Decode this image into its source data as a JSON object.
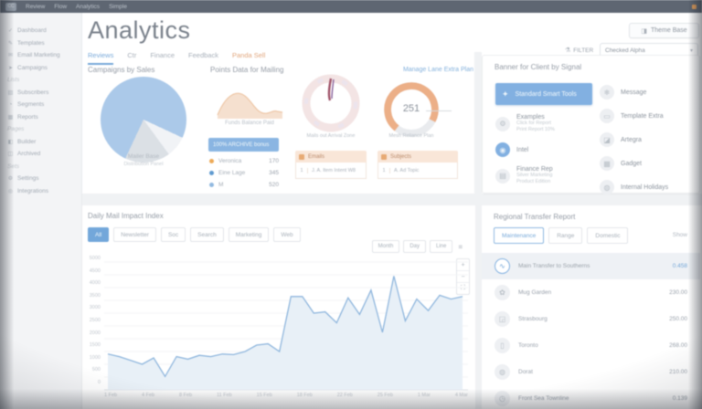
{
  "topbar": {
    "brand": "CC",
    "items": [
      "Review",
      "Flow",
      "Analytics",
      "Simple"
    ]
  },
  "sidebar": {
    "rows": [
      {
        "t": "item",
        "icon": "✓",
        "id": "dashboard",
        "label": "Dashboard"
      },
      {
        "t": "item",
        "icon": "✎",
        "id": "templates",
        "label": "Templates"
      },
      {
        "t": "item",
        "icon": "✉",
        "id": "email-marketing",
        "label": "Email Marketing"
      },
      {
        "t": "item",
        "icon": "➤",
        "id": "campaigns",
        "label": "Campaigns"
      },
      {
        "t": "header",
        "label": "Lists"
      },
      {
        "t": "item",
        "icon": "▤",
        "id": "subscribers",
        "label": "Subscribers"
      },
      {
        "t": "item",
        "icon": "◔",
        "id": "segments",
        "label": "Segments"
      },
      {
        "t": "item",
        "icon": "▦",
        "id": "reports",
        "label": "Reports"
      },
      {
        "t": "header",
        "label": "Pages"
      },
      {
        "t": "item",
        "icon": "◧",
        "id": "builder",
        "label": "Builder"
      },
      {
        "t": "item",
        "icon": "◫",
        "id": "archived",
        "label": "Archived"
      },
      {
        "t": "header",
        "label": "Sets"
      },
      {
        "t": "item",
        "icon": "⚙",
        "id": "settings",
        "label": "Settings"
      },
      {
        "t": "item",
        "icon": "◎",
        "id": "integrations",
        "label": "Integrations"
      }
    ]
  },
  "header": {
    "title": "Analytics",
    "theme_button": "Theme Base",
    "filter_label": "FILTER",
    "select_value": "Checked Alpha",
    "tabs": [
      {
        "label": "Reviews",
        "state": "active"
      },
      {
        "label": "Ctr",
        "state": ""
      },
      {
        "label": "Finance",
        "state": ""
      },
      {
        "label": "Feedback",
        "state": ""
      },
      {
        "label": "Panda Sell",
        "state": "orange"
      }
    ]
  },
  "cards": {
    "campaigns": {
      "title": "Campaigns by Sales",
      "caption_line1": "Mailer Base",
      "caption_line2": "Distribution Panel",
      "pie": {
        "slices": [
          {
            "value": 75,
            "color": "#a9c9ec"
          },
          {
            "value": 8,
            "color": "#f1f3f6"
          },
          {
            "value": 17,
            "color": "#dbe0e6"
          }
        ],
        "start_deg": 205
      }
    },
    "points": {
      "title": "Points Data for Mailing",
      "link": "Manage Lane Extra Plan",
      "spark_caption": "Funds Balance Paid",
      "badge": "100% ARCHIVE bonus",
      "legend": [
        {
          "label": "Veronica",
          "value": "170",
          "color": "#f2a94f"
        },
        {
          "label": "Eine Lage",
          "value": "345",
          "color": "#5b9bd5"
        },
        {
          "label": "M",
          "value": "520",
          "color": "#8fb9e4"
        }
      ],
      "wreath_caption": "Mails out Arrival Zone",
      "gauge": {
        "value": "251",
        "caption": "Mesh Reliance Plan",
        "percent": 72,
        "color": "#f0ae83"
      },
      "boxes": [
        {
          "header": "Emails",
          "row_num": "1",
          "row_text": "J. A. Item Intent W8"
        },
        {
          "header": "Subjects",
          "row_num": "1",
          "row_text": "A. Ad Topic"
        }
      ]
    },
    "banner": {
      "title": "Banner for Client by Signal",
      "left": [
        {
          "label": "Standard Smart Tools",
          "icon": "✦",
          "highlight": true
        },
        {
          "label": "Examples",
          "icon": "⚙",
          "sub1": "Click for Report",
          "sub2": "Print Report 10%"
        },
        {
          "label": "Intel",
          "icon": "◉",
          "blue": true
        },
        {
          "label": "Finance Rep",
          "icon": "▤",
          "sub1": "Silver Marketing",
          "sub2": "Product Edition"
        }
      ],
      "right": [
        {
          "label": "Message",
          "icon": "❄"
        },
        {
          "label": "Template Extra",
          "icon": "▭"
        },
        {
          "label": "Artegra",
          "icon": "◪"
        },
        {
          "label": "Gadget",
          "icon": "▦"
        },
        {
          "label": "Internal Holidays",
          "icon": "◍"
        }
      ]
    },
    "daily": {
      "title": "Daily Mail Impact Index",
      "pills": [
        {
          "label": "All",
          "active": true
        },
        {
          "label": "Newsletter"
        },
        {
          "label": "Soc"
        },
        {
          "label": "Search"
        },
        {
          "label": "Marketing"
        },
        {
          "label": "Web"
        }
      ],
      "range_buttons": [
        "Month",
        "Day",
        "Line"
      ],
      "zoom_buttons": [
        "+",
        "−",
        "⛶"
      ],
      "chart_data": {
        "type": "area",
        "ylim": [
          0,
          5000
        ],
        "y_ticks": [
          "5000",
          "4500",
          "4000",
          "3500",
          "3000",
          "2500",
          "2000",
          "1500",
          "1000",
          "500",
          "0"
        ],
        "x_labels": [
          "1 Feb",
          "4 Feb",
          "8 Feb",
          "11 Feb",
          "15 Feb",
          "18 Feb",
          "22 Feb",
          "25 Feb",
          "1 Mar",
          "4 Mar"
        ],
        "values": [
          1400,
          1300,
          1150,
          1000,
          1250,
          520,
          1300,
          1200,
          1350,
          1300,
          1400,
          1380,
          1500,
          1750,
          1800,
          1500,
          3650,
          3650,
          3000,
          3050,
          2620,
          3600,
          2950,
          3900,
          2250,
          4450,
          2700,
          3550,
          3100,
          3700,
          3550,
          3650
        ],
        "line_color": "#8cb6e1",
        "fill_color": "#e7f0f8"
      }
    },
    "regional": {
      "title": "Regional Transfer Report",
      "tabs": [
        {
          "label": "Maintenance",
          "active": true
        },
        {
          "label": "Range"
        },
        {
          "label": "Domestic"
        }
      ],
      "link": "Show",
      "rows": [
        {
          "icon": "∿",
          "label": "Main Transfer to Southerns",
          "value": "0.458",
          "highlight": true,
          "blue": true
        },
        {
          "icon": "✿",
          "label": "Mug Garden",
          "value": "230.00"
        },
        {
          "icon": "◲",
          "label": "Strasbourg",
          "value": "250.00"
        },
        {
          "icon": "▯",
          "label": "Toronto",
          "value": "268.00"
        },
        {
          "icon": "◍",
          "label": "Dorat",
          "value": "210.00"
        },
        {
          "icon": "◷",
          "label": "Front Sea Townline",
          "value": "0.139"
        }
      ]
    }
  }
}
